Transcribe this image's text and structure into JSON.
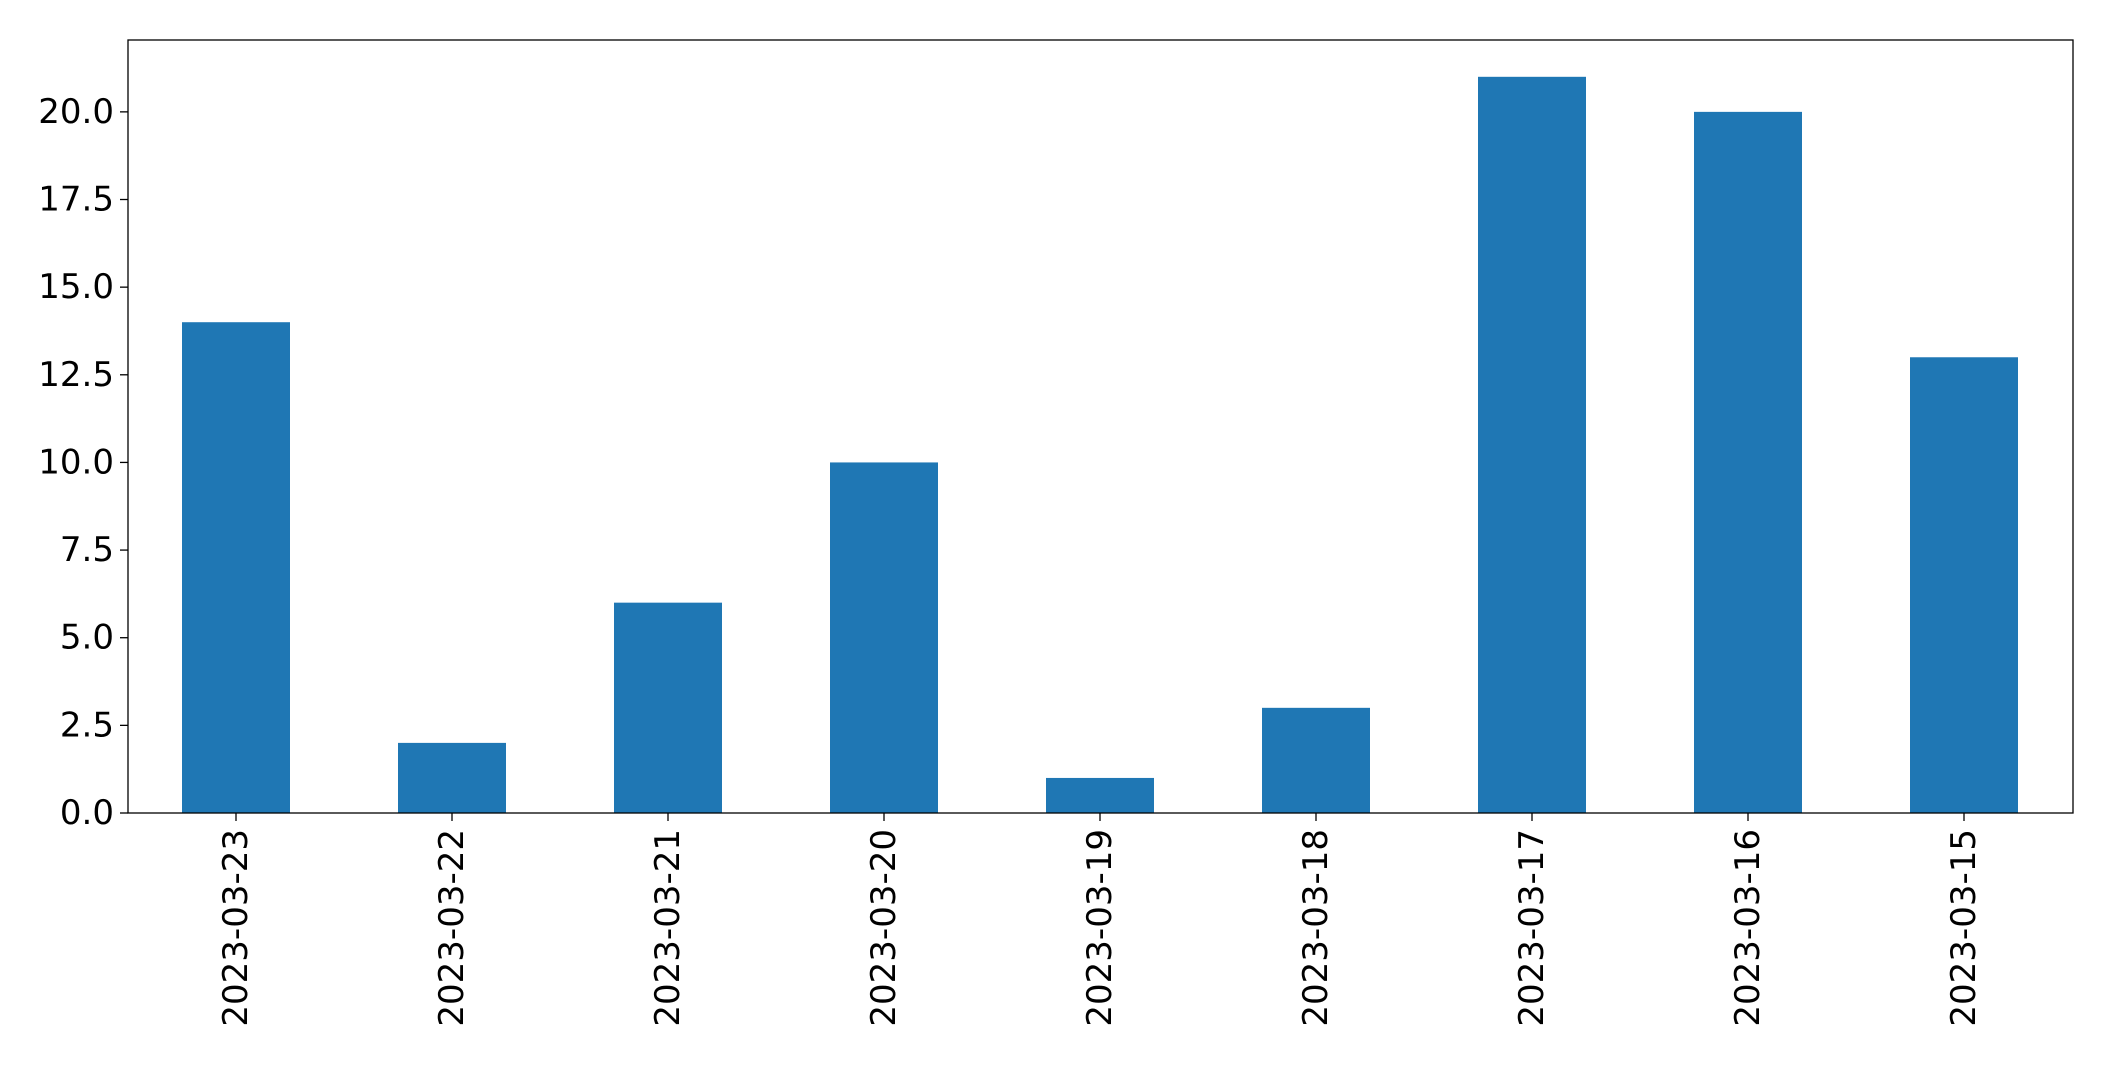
{
  "chart_data": {
    "type": "bar",
    "title": "",
    "xlabel": "",
    "ylabel": "",
    "categories": [
      "2023-03-23",
      "2023-03-22",
      "2023-03-21",
      "2023-03-20",
      "2023-03-19",
      "2023-03-18",
      "2023-03-17",
      "2023-03-16",
      "2023-03-15"
    ],
    "values": [
      14,
      2,
      6,
      10,
      1,
      3,
      21,
      20,
      13
    ],
    "ylim": [
      0,
      22.05
    ],
    "yticks": [
      0,
      2.5,
      5,
      7.5,
      10,
      12.5,
      15,
      17.5,
      20
    ],
    "ytick_labels": [
      "0.0",
      "2.5",
      "5.0",
      "7.5",
      "10.0",
      "12.5",
      "15.0",
      "17.5",
      "20.0"
    ],
    "grid": false,
    "legend": "none",
    "colors": {
      "bar": "#1f77b4",
      "axis": "#000000",
      "background": "#ffffff"
    }
  }
}
